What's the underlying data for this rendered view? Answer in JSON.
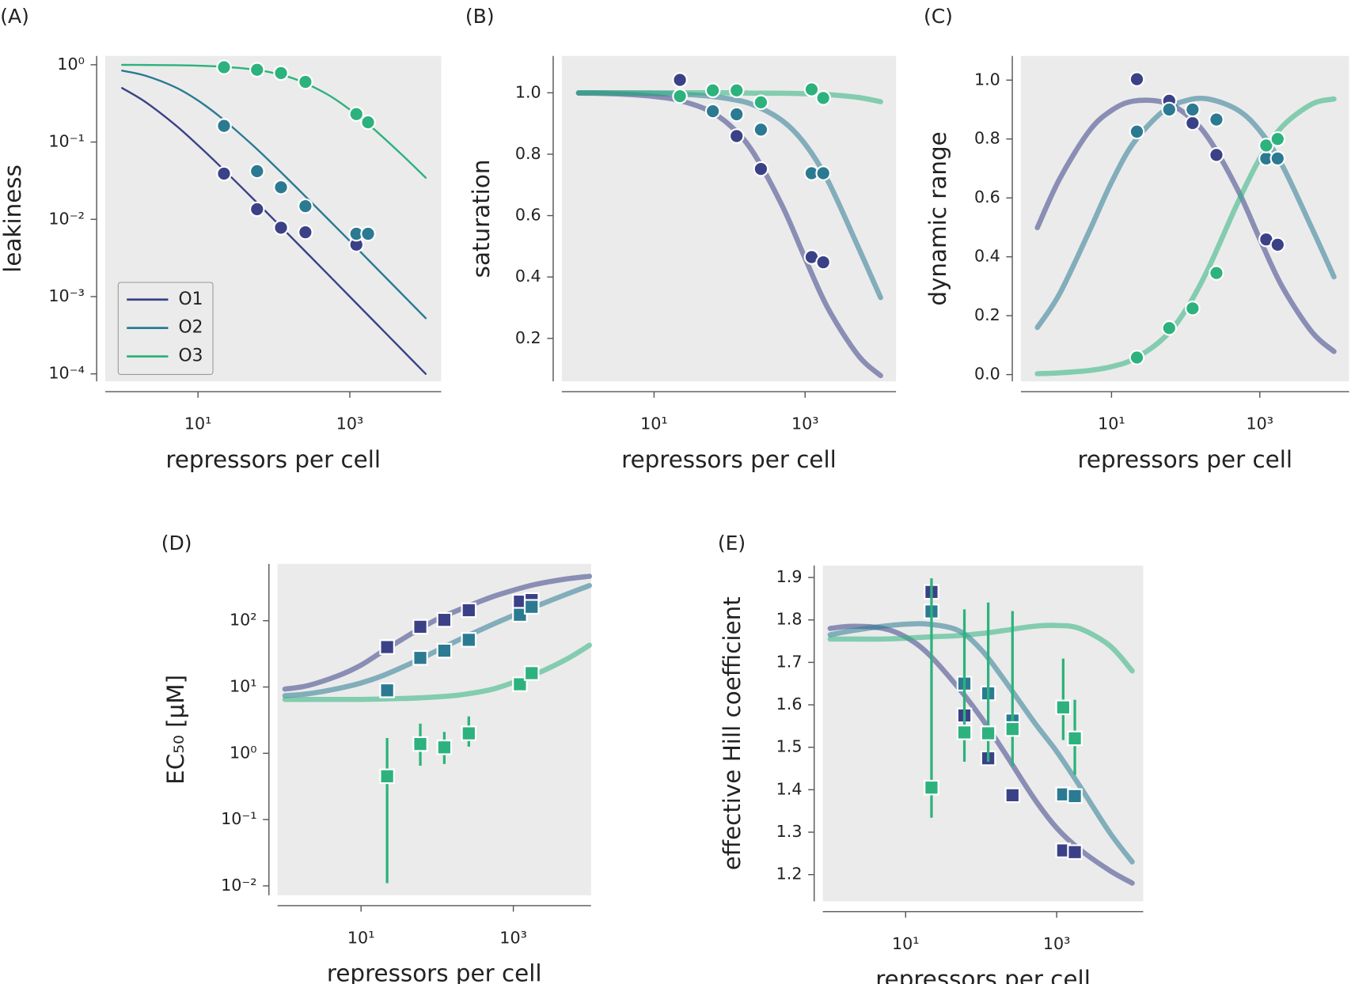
{
  "chart_data": [
    {
      "type": "scatter",
      "title": "(A)",
      "xlabel": "repressors per cell",
      "ylabel": "leakiness",
      "xlog": true,
      "ylog": true,
      "marker": "circle",
      "curve_style": "line",
      "legend": "lower left",
      "xlim": [
        0.6,
        16000
      ],
      "ylim": [
        8e-05,
        1.3
      ],
      "xticks": [
        {
          "value": 10,
          "label": "10¹"
        },
        {
          "value": 1000,
          "label": "10³"
        }
      ],
      "yticks": [
        {
          "value": 1,
          "label": "10⁰"
        },
        {
          "value": 0.1,
          "label": "10⁻¹"
        },
        {
          "value": 0.01,
          "label": "10⁻²"
        },
        {
          "value": 0.001,
          "label": "10⁻³"
        },
        {
          "value": 0.0001,
          "label": "10⁻⁴"
        }
      ],
      "x": [
        22,
        60,
        124,
        260,
        1220,
        1740
      ],
      "curve_x": [
        1,
        2,
        5,
        10,
        20,
        50,
        100,
        200,
        500,
        1000,
        2000,
        5000,
        10000
      ],
      "series": [
        {
          "name": "O1",
          "color": "#3b4187",
          "values": [
            0.039,
            0.0135,
            0.0078,
            0.0068,
            0.0047,
            null
          ],
          "curve": [
            0.5,
            0.333,
            0.167,
            0.0909,
            0.0476,
            0.0196,
            0.0099,
            0.00498,
            0.002,
            0.000999,
            0.0005,
            0.0002,
            0.0001
          ]
        },
        {
          "name": "O2",
          "color": "#2b7a92",
          "values": [
            0.162,
            0.042,
            0.026,
            0.0148,
            0.0065,
            0.0065
          ],
          "curve": [
            0.84,
            0.725,
            0.513,
            0.345,
            0.208,
            0.0952,
            0.05,
            0.0256,
            0.0104,
            0.00524,
            0.00262,
            0.00105,
            0.000526
          ]
        },
        {
          "name": "O3",
          "color": "#2db27d",
          "values": [
            0.93,
            0.86,
            0.78,
            0.6,
            0.23,
            0.18
          ],
          "curve": [
            0.997,
            0.994,
            0.986,
            0.973,
            0.947,
            0.877,
            0.781,
            0.641,
            0.417,
            0.263,
            0.152,
            0.0667,
            0.0345
          ]
        }
      ]
    },
    {
      "type": "scatter",
      "title": "(B)",
      "xlabel": "repressors per cell",
      "ylabel": "saturation",
      "xlog": true,
      "ylog": false,
      "marker": "circle",
      "curve_style": "band",
      "xlim": [
        0.6,
        16000
      ],
      "ylim": [
        0.06,
        1.12
      ],
      "xticks": [
        {
          "value": 10,
          "label": "10¹"
        },
        {
          "value": 1000,
          "label": "10³"
        }
      ],
      "yticks": [
        0.2,
        0.4,
        0.6,
        0.8,
        {
          "value": 1,
          "label": "1.0"
        }
      ],
      "x": [
        22,
        60,
        124,
        260,
        1220,
        1740
      ],
      "curve_x": [
        1,
        2,
        5,
        10,
        20,
        50,
        100,
        200,
        500,
        1000,
        2000,
        5000,
        10000
      ],
      "series": [
        {
          "color": "#3b4187",
          "values": [
            1.042,
            null,
            0.859,
            0.752,
            0.465,
            0.448
          ],
          "curve": [
            0.999,
            0.998,
            0.994,
            0.988,
            0.977,
            0.945,
            0.895,
            0.81,
            0.631,
            0.461,
            0.299,
            0.146,
            0.0787
          ]
        },
        {
          "color": "#2b7a92",
          "values": [
            null,
            0.94,
            0.93,
            0.88,
            0.738,
            0.738
          ],
          "curve": [
            1.0,
            1.0,
            0.999,
            0.998,
            0.996,
            0.99,
            0.98,
            0.962,
            0.909,
            0.833,
            0.714,
            0.5,
            0.333
          ]
        },
        {
          "color": "#2db27d",
          "values": [
            0.989,
            1.008,
            1.008,
            0.969,
            1.011,
            0.983
          ],
          "curve": [
            1.0,
            1.0,
            1.0,
            1.0,
            1.0,
            1.0,
            1.0,
            0.999,
            0.9985,
            0.997,
            0.994,
            0.985,
            0.971
          ]
        }
      ]
    },
    {
      "type": "scatter",
      "title": "(C)",
      "xlabel": "repressors per cell",
      "ylabel": "dynamic range",
      "xlog": true,
      "ylog": false,
      "marker": "circle",
      "curve_style": "band",
      "xlim": [
        0.6,
        16000
      ],
      "ylim": [
        -0.023,
        1.082
      ],
      "xticks": [
        {
          "value": 10,
          "label": "10¹"
        },
        {
          "value": 1000,
          "label": "10³"
        }
      ],
      "yticks": [
        {
          "value": 0,
          "label": "0.0"
        },
        0.2,
        0.4,
        0.6,
        0.8,
        {
          "value": 1,
          "label": "1.0"
        }
      ],
      "x": [
        22,
        60,
        124,
        260,
        1220,
        1740
      ],
      "curve_x": [
        1,
        2,
        5,
        10,
        20,
        50,
        100,
        200,
        500,
        1000,
        2000,
        5000,
        10000
      ],
      "series": [
        {
          "color": "#3b4187",
          "values": [
            1.003,
            0.93,
            0.854,
            0.746,
            0.459,
            0.441
          ],
          "curve": [
            0.499,
            0.665,
            0.827,
            0.897,
            0.929,
            0.925,
            0.885,
            0.805,
            0.629,
            0.46,
            0.299,
            0.146,
            0.0786
          ]
        },
        {
          "color": "#2b7a92",
          "values": [
            0.825,
            0.9,
            0.9,
            0.866,
            0.734,
            0.734
          ],
          "curve": [
            0.16,
            0.275,
            0.486,
            0.653,
            0.788,
            0.895,
            0.93,
            0.936,
            0.899,
            0.828,
            0.711,
            0.499,
            0.332
          ]
        },
        {
          "color": "#2db27d",
          "values": [
            0.058,
            0.158,
            0.225,
            0.345,
            0.778,
            0.8
          ],
          "curve": [
            0.003,
            0.006,
            0.014,
            0.027,
            0.053,
            0.123,
            0.219,
            0.358,
            0.582,
            0.734,
            0.842,
            0.918,
            0.936
          ]
        }
      ]
    },
    {
      "type": "scatter",
      "title": "(D)",
      "xlabel": "repressors per cell",
      "ylabel": "EC₅₀ [μM]",
      "xlog": true,
      "ylog": true,
      "marker": "square",
      "curve_style": "band",
      "xlim": [
        0.8,
        10500
      ],
      "ylim": [
        0.0072,
        720
      ],
      "xticks": [
        {
          "value": 10,
          "label": "10¹"
        },
        {
          "value": 1000,
          "label": "10³"
        }
      ],
      "yticks": [
        {
          "value": 100,
          "label": "10²"
        },
        {
          "value": 10,
          "label": "10¹"
        },
        {
          "value": 1,
          "label": "10⁰"
        },
        {
          "value": 0.1,
          "label": "10⁻¹"
        },
        {
          "value": 0.01,
          "label": "10⁻²"
        }
      ],
      "x": [
        22,
        60,
        124,
        260,
        1220,
        1740
      ],
      "curve_x": [
        1,
        2,
        5,
        10,
        20,
        50,
        100,
        200,
        500,
        1000,
        2000,
        5000,
        10000
      ],
      "series": [
        {
          "color": "#3b4187",
          "values": [
            40,
            81,
            103,
            144,
            194,
            205
          ],
          "curve": [
            9.3,
            10.5,
            14.8,
            21.4,
            35.5,
            67.6,
            105,
            148,
            224,
            288,
            355,
            427,
            468
          ]
        },
        {
          "color": "#2b7a92",
          "values": [
            8.9,
            27.5,
            35.3,
            51.5,
            123,
            162
          ],
          "curve": [
            7.4,
            7.9,
            9.5,
            11.5,
            15.1,
            24,
            35.5,
            52.5,
            85.1,
            120,
            166,
            251,
            339
          ]
        },
        {
          "color": "#2db27d",
          "values": [
            0.45,
            1.38,
            1.23,
            2.0,
            11.0,
            16.2
          ],
          "error_low": [
            0.011,
            0.65,
            0.69,
            1.26,
            null,
            null
          ],
          "error_high": [
            1.7,
            2.8,
            2.1,
            3.6,
            null,
            null
          ],
          "curve": [
            6.5,
            6.5,
            6.5,
            6.5,
            6.6,
            6.8,
            7.1,
            7.6,
            9.1,
            11.7,
            15.8,
            26.3,
            42.7
          ]
        }
      ]
    },
    {
      "type": "scatter",
      "title": "(E)",
      "xlabel": "repressors per cell",
      "ylabel": "effective Hill coefficient",
      "xlog": true,
      "ylog": false,
      "marker": "square",
      "curve_style": "band",
      "xlim": [
        0.8,
        14000
      ],
      "ylim": [
        1.137,
        1.928
      ],
      "xticks": [
        {
          "value": 10,
          "label": "10¹"
        },
        {
          "value": 1000,
          "label": "10³"
        }
      ],
      "yticks": [
        1.2,
        1.3,
        1.4,
        1.5,
        1.6,
        1.7,
        1.8,
        1.9
      ],
      "x": [
        22,
        60,
        124,
        260,
        1220,
        1740
      ],
      "curve_x": [
        1,
        2,
        5,
        10,
        20,
        50,
        100,
        200,
        500,
        1000,
        2000,
        5000,
        10000
      ],
      "series": [
        {
          "color": "#3b4187",
          "values": [
            1.866,
            1.575,
            1.474,
            1.387,
            1.257,
            1.253
          ],
          "curve": [
            1.78,
            1.785,
            1.78,
            1.76,
            1.72,
            1.64,
            1.57,
            1.49,
            1.38,
            1.31,
            1.26,
            1.21,
            1.18
          ]
        },
        {
          "color": "#2b7a92",
          "values": [
            1.82,
            1.65,
            1.627,
            1.563,
            1.389,
            1.385
          ],
          "curve": [
            1.765,
            1.775,
            1.785,
            1.79,
            1.79,
            1.775,
            1.73,
            1.66,
            1.56,
            1.49,
            1.41,
            1.3,
            1.23
          ]
        },
        {
          "color": "#2db27d",
          "values": [
            1.405,
            1.535,
            1.533,
            1.543,
            1.594,
            1.521
          ],
          "error_low": [
            1.334,
            1.466,
            1.466,
            1.456,
            1.517,
            1.435
          ],
          "error_high": [
            1.898,
            1.825,
            1.841,
            1.821,
            1.709,
            1.612
          ],
          "curve": [
            1.755,
            1.755,
            1.755,
            1.757,
            1.76,
            1.763,
            1.768,
            1.775,
            1.785,
            1.787,
            1.78,
            1.74,
            1.68
          ]
        }
      ]
    }
  ]
}
